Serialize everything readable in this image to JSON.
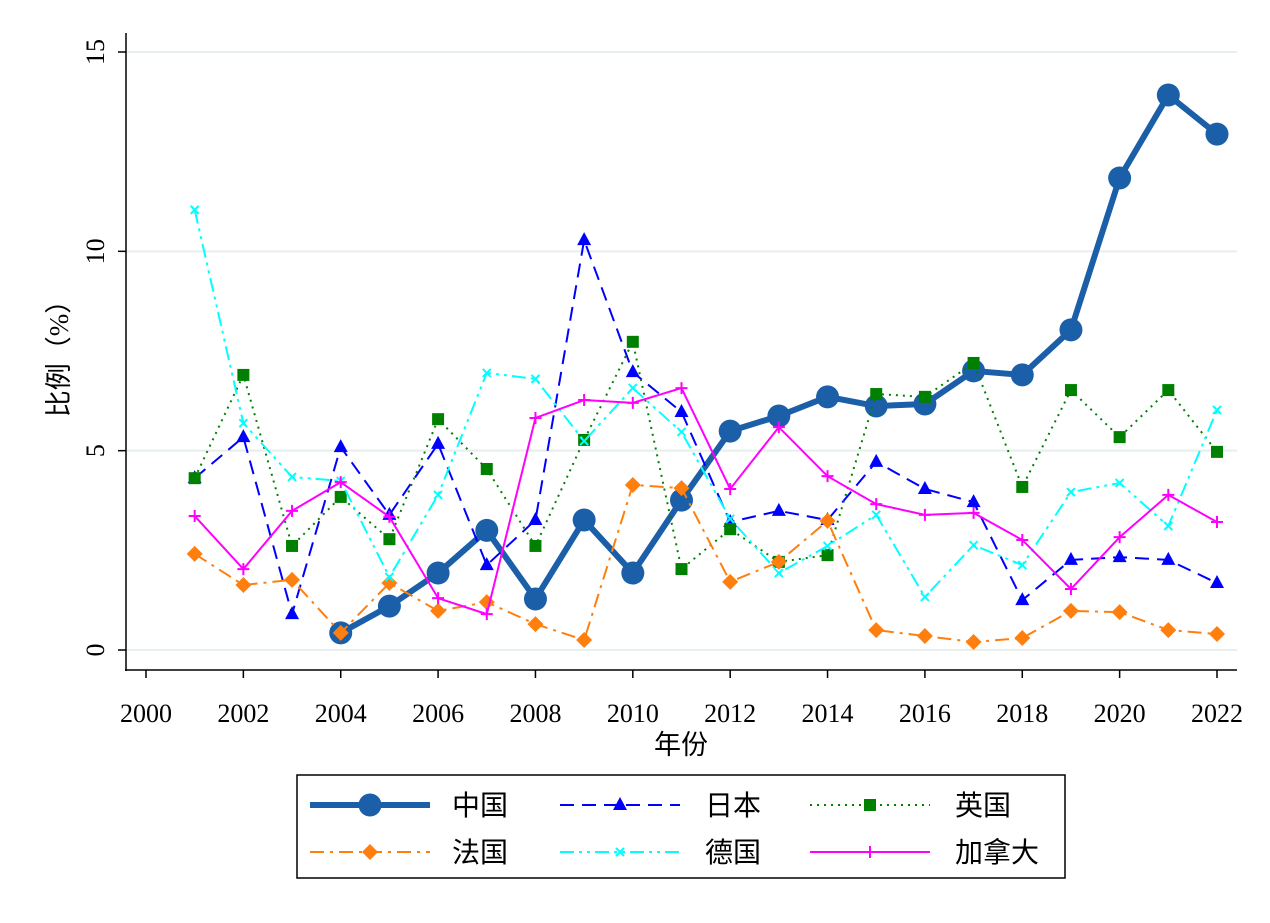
{
  "chart_data": {
    "type": "line",
    "title": "",
    "xlabel": "年份",
    "ylabel": "比例（%）",
    "xlim": [
      2000,
      2022
    ],
    "ylim": [
      0,
      15
    ],
    "xticks": [
      "2000",
      "2002",
      "2004",
      "2006",
      "2008",
      "2010",
      "2012",
      "2014",
      "2016",
      "2018",
      "2020",
      "2022"
    ],
    "yticks": [
      "0",
      "5",
      "10",
      "15"
    ],
    "grid": true,
    "legend_placement": "bottom",
    "x": [
      2001,
      2002,
      2003,
      2004,
      2005,
      2006,
      2007,
      2008,
      2009,
      2010,
      2011,
      2012,
      2013,
      2014,
      2015,
      2016,
      2017,
      2018,
      2019,
      2020,
      2021,
      2022
    ],
    "series": [
      {
        "name": "中国",
        "color": "#1a5fa8",
        "marker": "circle",
        "dash": "solid",
        "values": [
          null,
          null,
          null,
          0.43,
          1.1,
          1.93,
          3.0,
          1.28,
          3.26,
          1.93,
          3.76,
          5.49,
          5.87,
          6.35,
          6.12,
          6.17,
          7.0,
          6.9,
          8.03,
          11.84,
          13.92,
          12.94
        ]
      },
      {
        "name": "日本",
        "color": "#0000ff",
        "marker": "triangle",
        "dash": "dash",
        "values": [
          4.31,
          5.34,
          0.9,
          5.09,
          3.39,
          5.17,
          2.13,
          3.26,
          10.28,
          6.97,
          5.97,
          3.21,
          3.49,
          3.26,
          4.72,
          4.04,
          3.71,
          1.25,
          2.26,
          2.33,
          2.26,
          1.68
        ]
      },
      {
        "name": "英国",
        "color": "#008000",
        "marker": "square",
        "dash": "dot",
        "values": [
          4.31,
          6.9,
          2.61,
          3.84,
          2.78,
          5.79,
          4.54,
          2.61,
          5.27,
          7.73,
          2.03,
          3.03,
          2.21,
          2.38,
          6.42,
          6.35,
          7.2,
          4.09,
          6.52,
          5.34,
          6.52,
          4.97
        ]
      },
      {
        "name": "法国",
        "color": "#ff7f0e",
        "marker": "diamond",
        "dash": "dashdot",
        "values": [
          2.41,
          1.63,
          1.76,
          0.43,
          1.68,
          0.98,
          1.2,
          0.65,
          0.25,
          4.14,
          4.06,
          1.71,
          2.21,
          3.24,
          0.5,
          0.35,
          0.2,
          0.3,
          0.98,
          0.95,
          0.5,
          0.4
        ]
      },
      {
        "name": "德国",
        "color": "#00ffff",
        "marker": "x",
        "dash": "dashdotdot",
        "values": [
          11.04,
          5.69,
          4.34,
          4.24,
          1.83,
          3.89,
          6.95,
          6.8,
          5.24,
          6.57,
          5.47,
          3.29,
          1.93,
          2.61,
          3.39,
          1.33,
          2.63,
          2.13,
          3.96,
          4.19,
          3.11,
          6.02
        ]
      },
      {
        "name": "加拿大",
        "color": "#ff00ff",
        "marker": "plus",
        "dash": "solid",
        "values": [
          3.36,
          2.03,
          3.49,
          4.21,
          3.34,
          1.3,
          0.9,
          5.82,
          6.27,
          6.2,
          6.57,
          4.04,
          5.59,
          4.36,
          3.66,
          3.39,
          3.44,
          2.76,
          1.53,
          2.83,
          3.89,
          3.21
        ]
      }
    ]
  }
}
